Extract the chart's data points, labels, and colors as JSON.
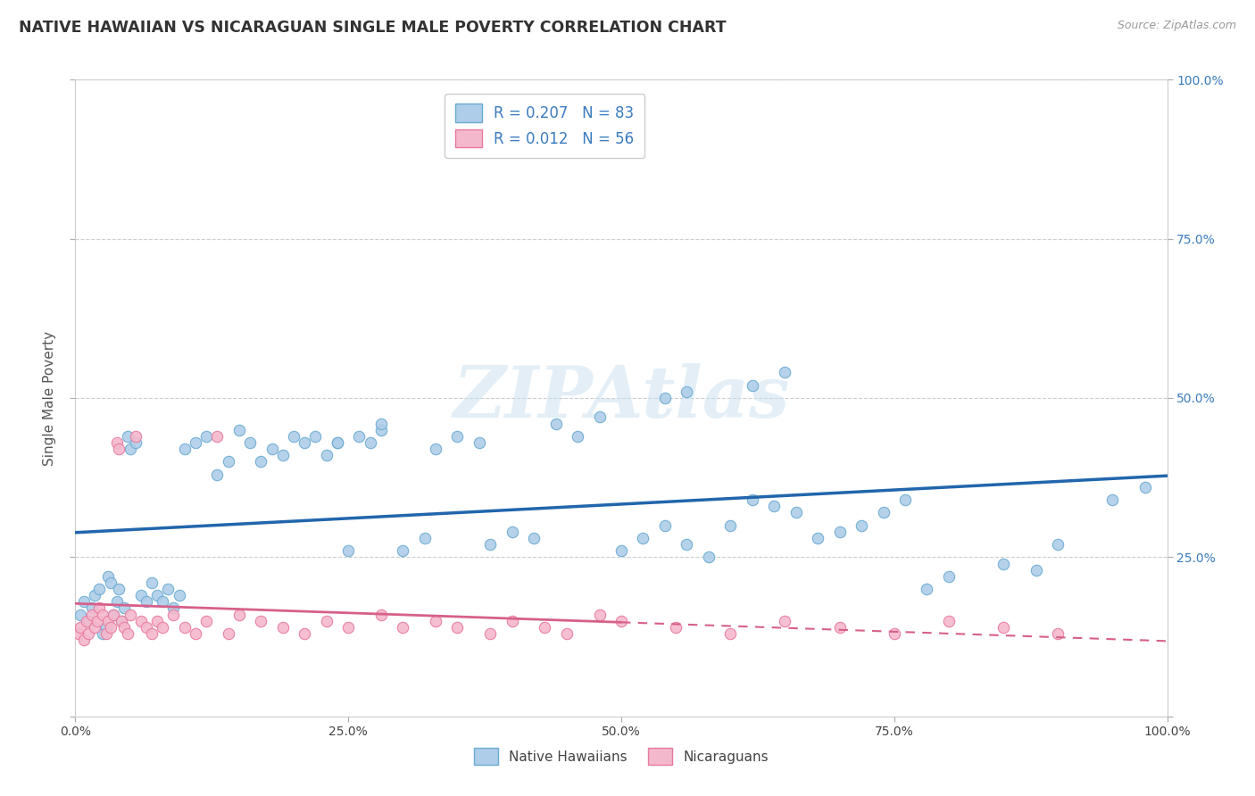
{
  "title": "NATIVE HAWAIIAN VS NICARAGUAN SINGLE MALE POVERTY CORRELATION CHART",
  "source_text": "Source: ZipAtlas.com",
  "ylabel": "Single Male Poverty",
  "xlim": [
    0,
    1
  ],
  "ylim": [
    0,
    1
  ],
  "xticks": [
    0,
    0.25,
    0.5,
    0.75,
    1.0
  ],
  "yticks": [
    0,
    0.25,
    0.5,
    0.75,
    1.0
  ],
  "xticklabels": [
    "0.0%",
    "25.0%",
    "50.0%",
    "75.0%",
    "100.0%"
  ],
  "yticklabels": [
    "",
    "25.0%",
    "50.0%",
    "75.0%",
    "100.0%"
  ],
  "blue_face": "#aecde8",
  "blue_edge": "#6aabd2",
  "pink_face": "#f4b8cc",
  "pink_edge": "#e8799e",
  "trend_blue_color": "#2166ac",
  "trend_pink_color": "#d6608a",
  "R_blue": 0.207,
  "N_blue": 83,
  "R_pink": 0.012,
  "N_pink": 56,
  "watermark": "ZIPAtlas",
  "legend_label_blue": "Native Hawaiians",
  "legend_label_pink": "Nicaraguans",
  "background_color": "#ffffff",
  "grid_color": "#c8c8c8",
  "tick_color": "#444444",
  "title_color": "#333333",
  "axis_label_color": "#555555",
  "right_tick_color": "#3a7bbf",
  "blue_x": [
    0.005,
    0.008,
    0.012,
    0.015,
    0.018,
    0.022,
    0.025,
    0.028,
    0.03,
    0.032,
    0.035,
    0.038,
    0.04,
    0.042,
    0.045,
    0.048,
    0.05,
    0.055,
    0.06,
    0.065,
    0.07,
    0.075,
    0.08,
    0.085,
    0.09,
    0.095,
    0.1,
    0.11,
    0.12,
    0.13,
    0.14,
    0.15,
    0.16,
    0.17,
    0.18,
    0.19,
    0.2,
    0.21,
    0.22,
    0.23,
    0.24,
    0.25,
    0.26,
    0.27,
    0.28,
    0.3,
    0.32,
    0.33,
    0.35,
    0.37,
    0.38,
    0.4,
    0.42,
    0.44,
    0.46,
    0.48,
    0.5,
    0.52,
    0.54,
    0.56,
    0.58,
    0.6,
    0.62,
    0.64,
    0.66,
    0.68,
    0.7,
    0.72,
    0.74,
    0.76,
    0.78,
    0.8,
    0.85,
    0.88,
    0.9,
    0.62,
    0.65,
    0.54,
    0.56,
    0.24,
    0.28,
    0.98,
    0.95
  ],
  "blue_y": [
    0.16,
    0.18,
    0.15,
    0.17,
    0.19,
    0.2,
    0.13,
    0.14,
    0.22,
    0.21,
    0.16,
    0.18,
    0.2,
    0.15,
    0.17,
    0.44,
    0.42,
    0.43,
    0.19,
    0.18,
    0.21,
    0.19,
    0.18,
    0.2,
    0.17,
    0.19,
    0.42,
    0.43,
    0.44,
    0.38,
    0.4,
    0.45,
    0.43,
    0.4,
    0.42,
    0.41,
    0.44,
    0.43,
    0.44,
    0.41,
    0.43,
    0.26,
    0.44,
    0.43,
    0.45,
    0.26,
    0.28,
    0.42,
    0.44,
    0.43,
    0.27,
    0.29,
    0.28,
    0.46,
    0.44,
    0.47,
    0.26,
    0.28,
    0.3,
    0.27,
    0.25,
    0.3,
    0.34,
    0.33,
    0.32,
    0.28,
    0.29,
    0.3,
    0.32,
    0.34,
    0.2,
    0.22,
    0.24,
    0.23,
    0.27,
    0.52,
    0.54,
    0.5,
    0.51,
    0.43,
    0.46,
    0.36,
    0.34
  ],
  "pink_x": [
    0.003,
    0.005,
    0.008,
    0.01,
    0.012,
    0.015,
    0.018,
    0.02,
    0.022,
    0.025,
    0.028,
    0.03,
    0.032,
    0.035,
    0.038,
    0.04,
    0.042,
    0.045,
    0.048,
    0.05,
    0.055,
    0.06,
    0.065,
    0.07,
    0.075,
    0.08,
    0.09,
    0.1,
    0.11,
    0.12,
    0.13,
    0.14,
    0.15,
    0.17,
    0.19,
    0.21,
    0.23,
    0.25,
    0.28,
    0.3,
    0.33,
    0.35,
    0.38,
    0.4,
    0.43,
    0.45,
    0.48,
    0.5,
    0.55,
    0.6,
    0.65,
    0.7,
    0.75,
    0.8,
    0.85,
    0.9
  ],
  "pink_y": [
    0.13,
    0.14,
    0.12,
    0.15,
    0.13,
    0.16,
    0.14,
    0.15,
    0.17,
    0.16,
    0.13,
    0.15,
    0.14,
    0.16,
    0.43,
    0.42,
    0.15,
    0.14,
    0.13,
    0.16,
    0.44,
    0.15,
    0.14,
    0.13,
    0.15,
    0.14,
    0.16,
    0.14,
    0.13,
    0.15,
    0.44,
    0.13,
    0.16,
    0.15,
    0.14,
    0.13,
    0.15,
    0.14,
    0.16,
    0.14,
    0.15,
    0.14,
    0.13,
    0.15,
    0.14,
    0.13,
    0.16,
    0.15,
    0.14,
    0.13,
    0.15,
    0.14,
    0.13,
    0.15,
    0.14,
    0.13
  ]
}
